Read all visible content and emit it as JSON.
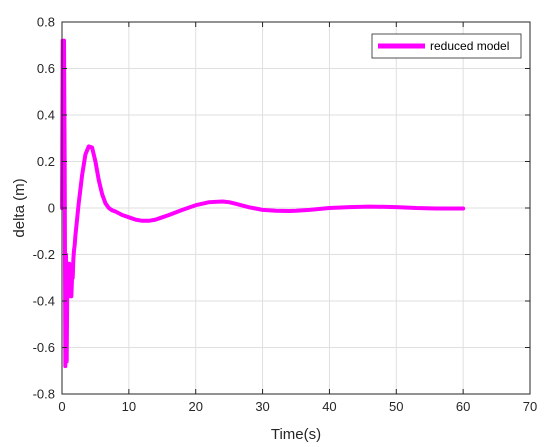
{
  "chart_data": {
    "type": "line",
    "xlabel": "Time(s)",
    "ylabel": "delta (m)",
    "xlim": [
      0,
      70
    ],
    "ylim": [
      -0.8,
      0.8
    ],
    "xticks": [
      "0",
      "10",
      "20",
      "30",
      "40",
      "50",
      "60",
      "70"
    ],
    "yticks": [
      "-0.8",
      "-0.6",
      "-0.4",
      "-0.2",
      "0",
      "0.2",
      "0.4",
      "0.6",
      "0.8"
    ],
    "grid": true,
    "legend_position": "top-right",
    "series": [
      {
        "name": "reduced model",
        "color": "#ff00ff",
        "x": [
          0,
          0.1,
          0.2,
          0.3,
          0.4,
          0.5,
          0.6,
          0.7,
          0.8,
          0.9,
          1.0,
          1.1,
          1.2,
          1.3,
          1.4,
          1.5,
          1.6,
          1.7,
          1.8,
          1.9,
          2.0,
          2.5,
          3.0,
          3.5,
          4.0,
          4.5,
          5.0,
          5.5,
          6.0,
          6.5,
          7.0,
          7.5,
          8.0,
          9.0,
          10.0,
          11.0,
          12.0,
          13.0,
          14.0,
          15.0,
          16.0,
          18.0,
          20.0,
          22.0,
          24.0,
          25.0,
          26.0,
          28.0,
          30.0,
          32.0,
          34.0,
          35.0,
          37.0,
          40.0,
          43.0,
          46.0,
          50.0,
          53.0,
          56.0,
          60.0
        ],
        "y": [
          0.0,
          0.72,
          0.0,
          0.72,
          0.2,
          -0.68,
          -0.2,
          -0.66,
          -0.3,
          -0.24,
          -0.38,
          -0.24,
          -0.36,
          -0.26,
          -0.38,
          -0.3,
          -0.3,
          -0.22,
          -0.18,
          -0.16,
          -0.12,
          0.02,
          0.14,
          0.23,
          0.265,
          0.26,
          0.2,
          0.12,
          0.06,
          0.02,
          0.0,
          -0.01,
          -0.015,
          -0.03,
          -0.04,
          -0.05,
          -0.055,
          -0.055,
          -0.05,
          -0.04,
          -0.03,
          -0.008,
          0.012,
          0.025,
          0.028,
          0.025,
          0.018,
          0.003,
          -0.008,
          -0.012,
          -0.013,
          -0.012,
          -0.008,
          0.0,
          0.004,
          0.006,
          0.004,
          0.0,
          -0.002,
          -0.002
        ]
      }
    ]
  }
}
